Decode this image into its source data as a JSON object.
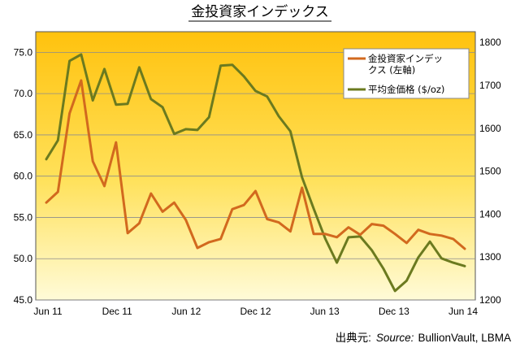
{
  "chart_data": {
    "type": "line",
    "title": "金投資家インデックス",
    "source_label": "出典元:",
    "source_italic": "Source:",
    "source_text": "BullionVault, LBMA",
    "x_tick_labels": [
      "Jun 11",
      "Dec 11",
      "Jun 12",
      "Dec 12",
      "Jun 13",
      "Dec 13",
      "Jun 14"
    ],
    "y_left": {
      "ticks": [
        "45.0",
        "50.0",
        "55.0",
        "60.0",
        "65.0",
        "70.0",
        "75.0"
      ],
      "ylim": [
        45,
        77.5
      ]
    },
    "y_right": {
      "ticks": [
        "1200",
        "1300",
        "1400",
        "1500",
        "1600",
        "1700",
        "1800"
      ],
      "ylim": [
        1200,
        1825
      ]
    },
    "grid": "horizontal",
    "legend_position": "top-right",
    "series": [
      {
        "name": "金投資家インデックス (左軸)",
        "axis": "left",
        "color": "#D2691E",
        "values": [
          56.8,
          58.1,
          67.6,
          71.6,
          61.8,
          58.8,
          64.1,
          53.1,
          54.3,
          57.9,
          55.7,
          56.8,
          54.7,
          51.3,
          52.0,
          52.4,
          56.0,
          56.5,
          58.2,
          54.8,
          54.4,
          53.3,
          58.6,
          53.0,
          53.0,
          52.6,
          53.8,
          52.9,
          54.2,
          54.0,
          53.0,
          51.9,
          53.5,
          53.0,
          52.8,
          52.4,
          51.2
        ]
      },
      {
        "name": "平均金価格 ($/oz)",
        "axis": "right",
        "color": "#6B7A1F",
        "values": [
          1528,
          1572,
          1757,
          1772,
          1665,
          1738,
          1655,
          1657,
          1742,
          1668,
          1649,
          1587,
          1598,
          1596,
          1626,
          1746,
          1748,
          1721,
          1687,
          1674,
          1628,
          1593,
          1486,
          1413,
          1343,
          1287,
          1346,
          1348,
          1316,
          1273,
          1221,
          1245,
          1299,
          1336,
          1297,
          1287,
          1279
        ]
      }
    ]
  }
}
